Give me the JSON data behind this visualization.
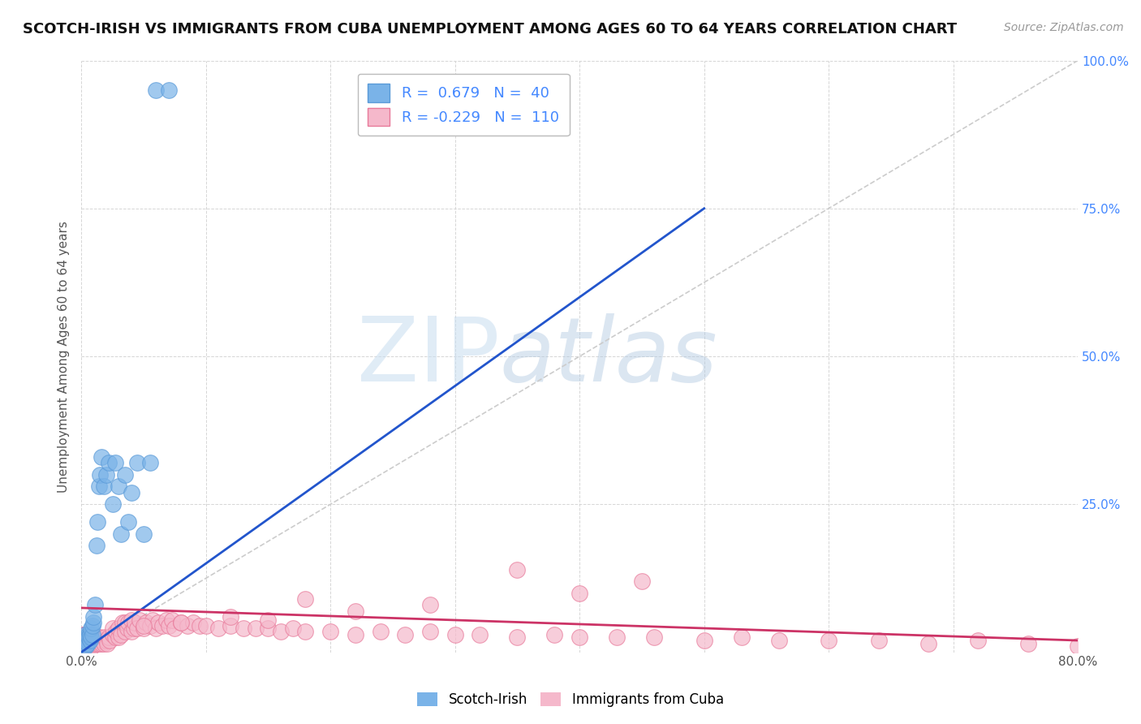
{
  "title": "SCOTCH-IRISH VS IMMIGRANTS FROM CUBA UNEMPLOYMENT AMONG AGES 60 TO 64 YEARS CORRELATION CHART",
  "source": "Source: ZipAtlas.com",
  "ylabel": "Unemployment Among Ages 60 to 64 years",
  "xlim": [
    0,
    0.8
  ],
  "ylim": [
    0,
    1.0
  ],
  "xticks": [
    0.0,
    0.1,
    0.2,
    0.3,
    0.4,
    0.5,
    0.6,
    0.7,
    0.8
  ],
  "xticklabels": [
    "0.0%",
    "",
    "",
    "",
    "",
    "",
    "",
    "",
    "80.0%"
  ],
  "yticks": [
    0.0,
    0.25,
    0.5,
    0.75,
    1.0
  ],
  "yticklabels": [
    "",
    "25.0%",
    "50.0%",
    "75.0%",
    "100.0%"
  ],
  "scotch_irish_color": "#7ab3e8",
  "scotch_irish_edge": "#5a9ad8",
  "cuba_color": "#f5b8cb",
  "cuba_edge": "#e87a9a",
  "blue_trend_color": "#2255cc",
  "pink_trend_color": "#cc3366",
  "diag_color": "#cccccc",
  "blue_R": 0.679,
  "blue_N": 40,
  "pink_R": -0.229,
  "pink_N": 110,
  "watermark_zip": "ZIP",
  "watermark_atlas": "atlas",
  "grid_color": "#cccccc",
  "ytick_color": "#4488ff",
  "blue_line_x0": 0.0,
  "blue_line_y0": 0.0,
  "blue_line_x1": 0.5,
  "blue_line_y1": 0.75,
  "pink_line_x0": 0.0,
  "pink_line_y0": 0.075,
  "pink_line_x1": 0.8,
  "pink_line_y1": 0.02,
  "scotch_irish_x": [
    0.001,
    0.002,
    0.002,
    0.003,
    0.003,
    0.004,
    0.004,
    0.005,
    0.005,
    0.006,
    0.006,
    0.007,
    0.007,
    0.008,
    0.008,
    0.009,
    0.009,
    0.01,
    0.01,
    0.011,
    0.012,
    0.013,
    0.014,
    0.015,
    0.016,
    0.018,
    0.02,
    0.022,
    0.025,
    0.027,
    0.03,
    0.032,
    0.035,
    0.038,
    0.04,
    0.045,
    0.05,
    0.055,
    0.06,
    0.07
  ],
  "scotch_irish_y": [
    0.02,
    0.015,
    0.025,
    0.01,
    0.03,
    0.02,
    0.01,
    0.02,
    0.015,
    0.03,
    0.025,
    0.02,
    0.03,
    0.025,
    0.04,
    0.03,
    0.045,
    0.05,
    0.06,
    0.08,
    0.18,
    0.22,
    0.28,
    0.3,
    0.33,
    0.28,
    0.3,
    0.32,
    0.25,
    0.32,
    0.28,
    0.2,
    0.3,
    0.22,
    0.27,
    0.32,
    0.2,
    0.32,
    0.95,
    0.95
  ],
  "cuba_x": [
    0.001,
    0.001,
    0.001,
    0.002,
    0.002,
    0.002,
    0.003,
    0.003,
    0.003,
    0.004,
    0.004,
    0.004,
    0.005,
    0.005,
    0.006,
    0.006,
    0.007,
    0.007,
    0.008,
    0.008,
    0.009,
    0.009,
    0.01,
    0.01,
    0.011,
    0.012,
    0.013,
    0.014,
    0.015,
    0.016,
    0.017,
    0.018,
    0.019,
    0.02,
    0.021,
    0.022,
    0.023,
    0.025,
    0.025,
    0.027,
    0.028,
    0.03,
    0.03,
    0.032,
    0.033,
    0.035,
    0.035,
    0.037,
    0.038,
    0.04,
    0.04,
    0.042,
    0.043,
    0.045,
    0.047,
    0.05,
    0.052,
    0.055,
    0.057,
    0.06,
    0.062,
    0.065,
    0.068,
    0.07,
    0.073,
    0.075,
    0.08,
    0.085,
    0.09,
    0.095,
    0.1,
    0.11,
    0.12,
    0.13,
    0.14,
    0.15,
    0.16,
    0.17,
    0.18,
    0.2,
    0.22,
    0.24,
    0.26,
    0.28,
    0.3,
    0.32,
    0.35,
    0.38,
    0.4,
    0.43,
    0.46,
    0.5,
    0.53,
    0.56,
    0.6,
    0.64,
    0.68,
    0.72,
    0.76,
    0.8,
    0.35,
    0.4,
    0.45,
    0.18,
    0.22,
    0.28,
    0.12,
    0.15,
    0.08,
    0.05
  ],
  "cuba_y": [
    0.01,
    0.02,
    0.03,
    0.01,
    0.02,
    0.03,
    0.01,
    0.02,
    0.015,
    0.01,
    0.02,
    0.03,
    0.01,
    0.02,
    0.015,
    0.025,
    0.01,
    0.02,
    0.015,
    0.025,
    0.01,
    0.02,
    0.015,
    0.025,
    0.02,
    0.015,
    0.025,
    0.015,
    0.025,
    0.015,
    0.02,
    0.015,
    0.025,
    0.02,
    0.015,
    0.025,
    0.02,
    0.03,
    0.04,
    0.025,
    0.035,
    0.025,
    0.04,
    0.03,
    0.05,
    0.035,
    0.05,
    0.04,
    0.05,
    0.035,
    0.055,
    0.04,
    0.05,
    0.04,
    0.055,
    0.04,
    0.05,
    0.045,
    0.055,
    0.04,
    0.05,
    0.045,
    0.055,
    0.045,
    0.055,
    0.04,
    0.05,
    0.045,
    0.05,
    0.045,
    0.045,
    0.04,
    0.045,
    0.04,
    0.04,
    0.04,
    0.035,
    0.04,
    0.035,
    0.035,
    0.03,
    0.035,
    0.03,
    0.035,
    0.03,
    0.03,
    0.025,
    0.03,
    0.025,
    0.025,
    0.025,
    0.02,
    0.025,
    0.02,
    0.02,
    0.02,
    0.015,
    0.02,
    0.015,
    0.01,
    0.14,
    0.1,
    0.12,
    0.09,
    0.07,
    0.08,
    0.06,
    0.055,
    0.05,
    0.045
  ]
}
